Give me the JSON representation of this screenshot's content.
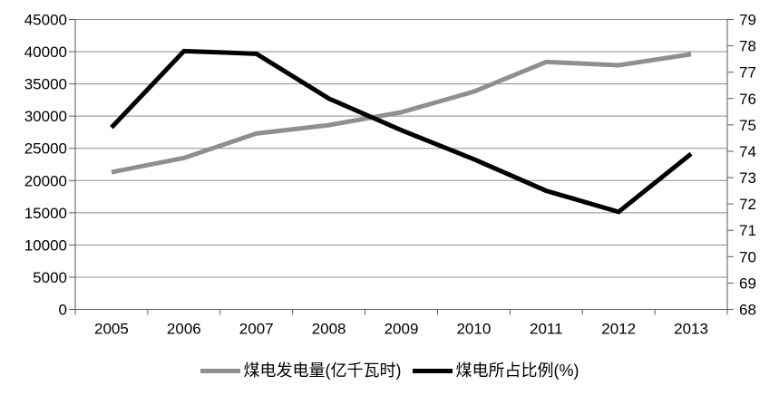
{
  "chart_data": {
    "type": "line",
    "title": "",
    "categories": [
      "2005",
      "2006",
      "2007",
      "2008",
      "2009",
      "2010",
      "2011",
      "2012",
      "2013"
    ],
    "series": [
      {
        "name": "煤电发电量(亿千瓦时)",
        "axis": "left",
        "color": "#8f8f8f",
        "values": [
          21300,
          23500,
          27300,
          28600,
          30600,
          33800,
          38400,
          37900,
          39600
        ]
      },
      {
        "name": "煤电所占比例(%)",
        "axis": "right",
        "color": "#000000",
        "values": [
          74.9,
          77.8,
          77.7,
          76.0,
          74.8,
          73.7,
          72.5,
          71.7,
          73.9
        ]
      }
    ],
    "left_axis": {
      "min": 0,
      "max": 45000,
      "step": 5000,
      "tick_labels": [
        "0",
        "5000",
        "10000",
        "15000",
        "20000",
        "25000",
        "30000",
        "35000",
        "40000",
        "45000"
      ]
    },
    "right_axis": {
      "min": 68,
      "max": 79,
      "step": 1,
      "tick_labels": [
        "68",
        "69",
        "70",
        "71",
        "72",
        "73",
        "74",
        "75",
        "76",
        "77",
        "78",
        "79"
      ]
    },
    "grid": true,
    "legend_position": "bottom"
  },
  "colors": {
    "grid": "#8c8c8c",
    "axis": "#595959",
    "text": "#000000",
    "background": "#ffffff"
  }
}
